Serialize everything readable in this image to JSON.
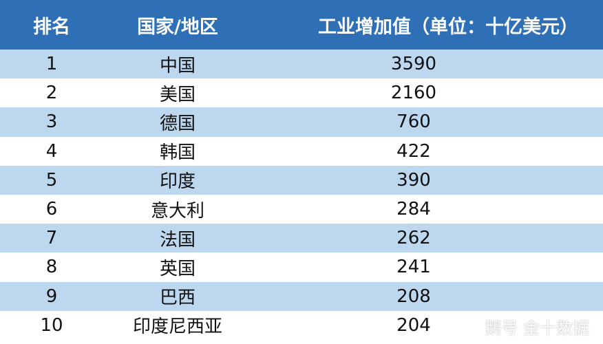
{
  "chart_data": {
    "type": "table",
    "columns": [
      "排名",
      "国家/地区",
      "工业增加值（单位：十亿美元）"
    ],
    "rows": [
      {
        "rank": "1",
        "country": "中国",
        "value": "3590"
      },
      {
        "rank": "2",
        "country": "美国",
        "value": "2160"
      },
      {
        "rank": "3",
        "country": "德国",
        "value": "760"
      },
      {
        "rank": "4",
        "country": "韩国",
        "value": "422"
      },
      {
        "rank": "5",
        "country": "印度",
        "value": "390"
      },
      {
        "rank": "6",
        "country": "意大利",
        "value": "284"
      },
      {
        "rank": "7",
        "country": "法国",
        "value": "262"
      },
      {
        "rank": "8",
        "country": "英国",
        "value": "241"
      },
      {
        "rank": "9",
        "country": "巴西",
        "value": "208"
      },
      {
        "rank": "10",
        "country": "印度尼西亚",
        "value": "204"
      }
    ]
  },
  "watermark": {
    "text": "鹅号 金十数据",
    "icon": "magnifier-logo-icon"
  },
  "colors": {
    "header": "#2f6fb6",
    "band": "#bdd7ee",
    "header_text": "#ffffff"
  }
}
